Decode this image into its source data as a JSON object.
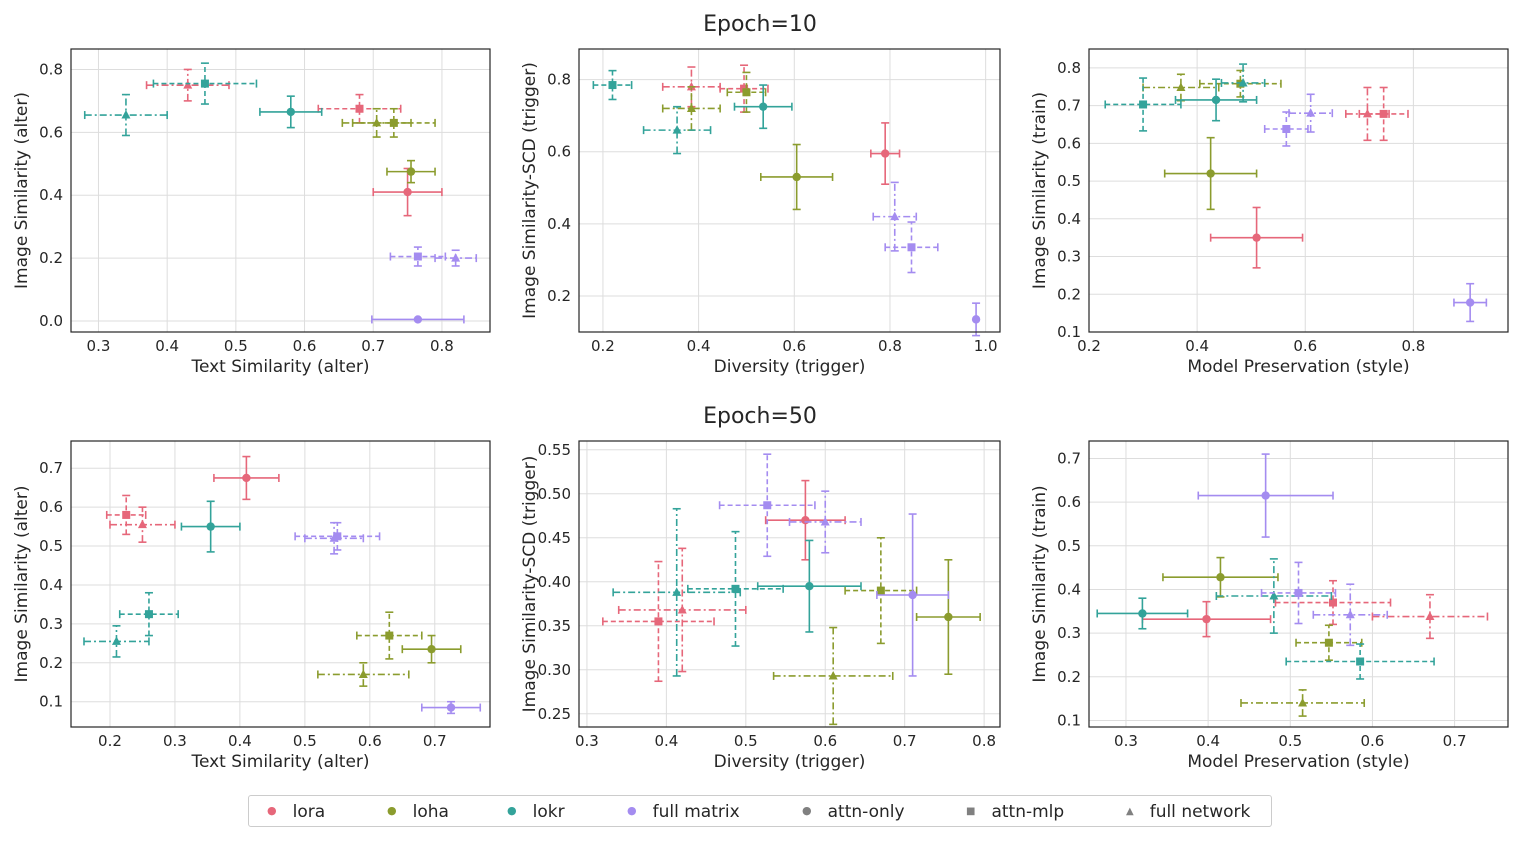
{
  "rows": [
    {
      "title": "Epoch=10"
    },
    {
      "title": "Epoch=50"
    }
  ],
  "colors": {
    "lora": "#e6677a",
    "loha": "#8b9c2e",
    "lokr": "#33a39a",
    "full matrix": "#a48cf0",
    "neutral": "#808080"
  },
  "legend": [
    {
      "label": "lora",
      "color": "#e6677a",
      "shape": "circle"
    },
    {
      "label": "loha",
      "color": "#8b9c2e",
      "shape": "circle"
    },
    {
      "label": "lokr",
      "color": "#33a39a",
      "shape": "circle"
    },
    {
      "label": "full matrix",
      "color": "#a48cf0",
      "shape": "circle"
    },
    {
      "label": "attn-only",
      "color": "#808080",
      "shape": "circle"
    },
    {
      "label": "attn-mlp",
      "color": "#808080",
      "shape": "square"
    },
    {
      "label": "full network",
      "color": "#808080",
      "shape": "triangle"
    }
  ],
  "chart_data": [
    {
      "type": "scatter",
      "row": 0,
      "col": 0,
      "xlabel": "Text Similarity (alter)",
      "ylabel": "Image Similarity (alter)",
      "xlim": [
        0.26,
        0.87
      ],
      "ylim": [
        -0.035,
        0.865
      ],
      "xticks": [
        "0.3",
        "0.4",
        "0.5",
        "0.6",
        "0.7",
        "0.8"
      ],
      "yticks": [
        "0.0",
        "0.2",
        "0.4",
        "0.6",
        "0.8"
      ],
      "grid": true,
      "points": [
        {
          "m": "lora",
          "c": "attn-only",
          "x": 0.75,
          "y": 0.41,
          "xerr": 0.05,
          "yerr": 0.075
        },
        {
          "m": "lora",
          "c": "attn-mlp",
          "x": 0.68,
          "y": 0.675,
          "xerr": 0.06,
          "yerr": 0.045
        },
        {
          "m": "lora",
          "c": "full network",
          "x": 0.43,
          "y": 0.75,
          "xerr": 0.06,
          "yerr": 0.05
        },
        {
          "m": "loha",
          "c": "attn-only",
          "x": 0.755,
          "y": 0.475,
          "xerr": 0.035,
          "yerr": 0.035
        },
        {
          "m": "loha",
          "c": "attn-mlp",
          "x": 0.73,
          "y": 0.63,
          "xerr": 0.06,
          "yerr": 0.045
        },
        {
          "m": "loha",
          "c": "full network",
          "x": 0.705,
          "y": 0.63,
          "xerr": 0.05,
          "yerr": 0.045
        },
        {
          "m": "lokr",
          "c": "attn-only",
          "x": 0.58,
          "y": 0.665,
          "xerr": 0.045,
          "yerr": 0.05
        },
        {
          "m": "lokr",
          "c": "attn-mlp",
          "x": 0.455,
          "y": 0.755,
          "xerr": 0.075,
          "yerr": 0.065
        },
        {
          "m": "lokr",
          "c": "full network",
          "x": 0.34,
          "y": 0.655,
          "xerr": 0.06,
          "yerr": 0.065
        },
        {
          "m": "full matrix",
          "c": "attn-only",
          "x": 0.765,
          "y": 0.005,
          "xerr": 0.067,
          "yerr": 0.0
        },
        {
          "m": "full matrix",
          "c": "attn-mlp",
          "x": 0.765,
          "y": 0.205,
          "xerr": 0.04,
          "yerr": 0.03
        },
        {
          "m": "full matrix",
          "c": "full network",
          "x": 0.82,
          "y": 0.2,
          "xerr": 0.03,
          "yerr": 0.025
        }
      ]
    },
    {
      "type": "scatter",
      "row": 0,
      "col": 1,
      "xlabel": "Diversity (trigger)",
      "ylabel": "Image Similarity-SCD (trigger)",
      "xlim": [
        0.15,
        1.03
      ],
      "ylim": [
        0.1,
        0.885
      ],
      "xticks": [
        "0.2",
        "0.4",
        "0.6",
        "0.8",
        "1.0"
      ],
      "yticks": [
        "0.2",
        "0.4",
        "0.6",
        "0.8"
      ],
      "grid": true,
      "points": [
        {
          "m": "lora",
          "c": "attn-only",
          "x": 0.79,
          "y": 0.595,
          "xerr": 0.03,
          "yerr": 0.085
        },
        {
          "m": "lora",
          "c": "attn-mlp",
          "x": 0.495,
          "y": 0.775,
          "xerr": 0.05,
          "yerr": 0.065
        },
        {
          "m": "lora",
          "c": "full network",
          "x": 0.385,
          "y": 0.78,
          "xerr": 0.06,
          "yerr": 0.055
        },
        {
          "m": "loha",
          "c": "attn-only",
          "x": 0.605,
          "y": 0.53,
          "xerr": 0.075,
          "yerr": 0.09
        },
        {
          "m": "loha",
          "c": "attn-mlp",
          "x": 0.5,
          "y": 0.765,
          "xerr": 0.04,
          "yerr": 0.055
        },
        {
          "m": "loha",
          "c": "full network",
          "x": 0.385,
          "y": 0.72,
          "xerr": 0.06,
          "yerr": 0.06
        },
        {
          "m": "lokr",
          "c": "attn-only",
          "x": 0.535,
          "y": 0.725,
          "xerr": 0.06,
          "yerr": 0.06
        },
        {
          "m": "lokr",
          "c": "attn-mlp",
          "x": 0.22,
          "y": 0.785,
          "xerr": 0.04,
          "yerr": 0.04
        },
        {
          "m": "lokr",
          "c": "full network",
          "x": 0.355,
          "y": 0.66,
          "xerr": 0.07,
          "yerr": 0.065
        },
        {
          "m": "full matrix",
          "c": "attn-only",
          "x": 0.98,
          "y": 0.135,
          "xerr": 0.0,
          "yerr": 0.045
        },
        {
          "m": "full matrix",
          "c": "attn-mlp",
          "x": 0.845,
          "y": 0.335,
          "xerr": 0.055,
          "yerr": 0.07
        },
        {
          "m": "full matrix",
          "c": "full network",
          "x": 0.81,
          "y": 0.42,
          "xerr": 0.045,
          "yerr": 0.095
        }
      ]
    },
    {
      "type": "scatter",
      "row": 0,
      "col": 2,
      "xlabel": "Model Preservation (style)",
      "ylabel": "Image Similarity (train)",
      "xlim": [
        0.2,
        0.975
      ],
      "ylim": [
        0.1,
        0.85
      ],
      "xticks": [
        "0.2",
        "0.4",
        "0.6",
        "0.8"
      ],
      "yticks": [
        "0.1",
        "0.2",
        "0.3",
        "0.4",
        "0.5",
        "0.6",
        "0.7",
        "0.8"
      ],
      "grid": true,
      "points": [
        {
          "m": "lora",
          "c": "attn-only",
          "x": 0.51,
          "y": 0.35,
          "xerr": 0.085,
          "yerr": 0.08
        },
        {
          "m": "lora",
          "c": "attn-mlp",
          "x": 0.745,
          "y": 0.678,
          "xerr": 0.045,
          "yerr": 0.07
        },
        {
          "m": "lora",
          "c": "full network",
          "x": 0.715,
          "y": 0.678,
          "xerr": 0.04,
          "yerr": 0.07
        },
        {
          "m": "loha",
          "c": "attn-only",
          "x": 0.425,
          "y": 0.52,
          "xerr": 0.085,
          "yerr": 0.095
        },
        {
          "m": "loha",
          "c": "attn-mlp",
          "x": 0.48,
          "y": 0.758,
          "xerr": 0.075,
          "yerr": 0.035
        },
        {
          "m": "loha",
          "c": "full network",
          "x": 0.37,
          "y": 0.748,
          "xerr": 0.07,
          "yerr": 0.035
        },
        {
          "m": "lokr",
          "c": "attn-only",
          "x": 0.435,
          "y": 0.715,
          "xerr": 0.075,
          "yerr": 0.055
        },
        {
          "m": "lokr",
          "c": "attn-mlp",
          "x": 0.3,
          "y": 0.703,
          "xerr": 0.07,
          "yerr": 0.07
        },
        {
          "m": "lokr",
          "c": "full network",
          "x": 0.485,
          "y": 0.76,
          "xerr": 0.04,
          "yerr": 0.05
        },
        {
          "m": "full matrix",
          "c": "attn-only",
          "x": 0.905,
          "y": 0.178,
          "xerr": 0.03,
          "yerr": 0.05
        },
        {
          "m": "full matrix",
          "c": "attn-mlp",
          "x": 0.565,
          "y": 0.638,
          "xerr": 0.04,
          "yerr": 0.045
        },
        {
          "m": "full matrix",
          "c": "full network",
          "x": 0.61,
          "y": 0.68,
          "xerr": 0.04,
          "yerr": 0.05
        }
      ]
    },
    {
      "type": "scatter",
      "row": 1,
      "col": 0,
      "xlabel": "Text Similarity (alter)",
      "ylabel": "Image Similarity (alter)",
      "xlim": [
        0.14,
        0.785
      ],
      "ylim": [
        0.035,
        0.77
      ],
      "xticks": [
        "0.2",
        "0.3",
        "0.4",
        "0.5",
        "0.6",
        "0.7"
      ],
      "yticks": [
        "0.1",
        "0.2",
        "0.3",
        "0.4",
        "0.5",
        "0.6",
        "0.7"
      ],
      "grid": true,
      "points": [
        {
          "m": "lora",
          "c": "attn-only",
          "x": 0.41,
          "y": 0.675,
          "xerr": 0.05,
          "yerr": 0.055
        },
        {
          "m": "lora",
          "c": "attn-mlp",
          "x": 0.225,
          "y": 0.58,
          "xerr": 0.03,
          "yerr": 0.05
        },
        {
          "m": "lora",
          "c": "full network",
          "x": 0.25,
          "y": 0.555,
          "xerr": 0.05,
          "yerr": 0.045
        },
        {
          "m": "loha",
          "c": "attn-only",
          "x": 0.695,
          "y": 0.235,
          "xerr": 0.045,
          "yerr": 0.035
        },
        {
          "m": "loha",
          "c": "attn-mlp",
          "x": 0.63,
          "y": 0.27,
          "xerr": 0.05,
          "yerr": 0.06
        },
        {
          "m": "loha",
          "c": "full network",
          "x": 0.59,
          "y": 0.17,
          "xerr": 0.07,
          "yerr": 0.03
        },
        {
          "m": "lokr",
          "c": "attn-only",
          "x": 0.355,
          "y": 0.55,
          "xerr": 0.045,
          "yerr": 0.065
        },
        {
          "m": "lokr",
          "c": "attn-mlp",
          "x": 0.26,
          "y": 0.325,
          "xerr": 0.045,
          "yerr": 0.055
        },
        {
          "m": "lokr",
          "c": "full network",
          "x": 0.21,
          "y": 0.255,
          "xerr": 0.05,
          "yerr": 0.04
        },
        {
          "m": "full matrix",
          "c": "attn-only",
          "x": 0.725,
          "y": 0.085,
          "xerr": 0.045,
          "yerr": 0.015
        },
        {
          "m": "full matrix",
          "c": "attn-mlp",
          "x": 0.55,
          "y": 0.525,
          "xerr": 0.065,
          "yerr": 0.035
        },
        {
          "m": "full matrix",
          "c": "full network",
          "x": 0.545,
          "y": 0.52,
          "xerr": 0.045,
          "yerr": 0.04
        }
      ]
    },
    {
      "type": "scatter",
      "row": 1,
      "col": 1,
      "xlabel": "Diversity (trigger)",
      "ylabel": "Image Similarity-SCD (trigger)",
      "xlim": [
        0.29,
        0.82
      ],
      "ylim": [
        0.235,
        0.56
      ],
      "xticks": [
        "0.3",
        "0.4",
        "0.5",
        "0.6",
        "0.7",
        "0.8"
      ],
      "yticks": [
        "0.25",
        "0.30",
        "0.35",
        "0.40",
        "0.45",
        "0.50",
        "0.55"
      ],
      "grid": true,
      "points": [
        {
          "m": "lora",
          "c": "attn-only",
          "x": 0.575,
          "y": 0.47,
          "xerr": 0.05,
          "yerr": 0.045
        },
        {
          "m": "lora",
          "c": "attn-mlp",
          "x": 0.39,
          "y": 0.355,
          "xerr": 0.07,
          "yerr": 0.068
        },
        {
          "m": "lora",
          "c": "full network",
          "x": 0.42,
          "y": 0.368,
          "xerr": 0.08,
          "yerr": 0.07
        },
        {
          "m": "loha",
          "c": "attn-only",
          "x": 0.755,
          "y": 0.36,
          "xerr": 0.04,
          "yerr": 0.065
        },
        {
          "m": "loha",
          "c": "attn-mlp",
          "x": 0.67,
          "y": 0.39,
          "xerr": 0.045,
          "yerr": 0.06
        },
        {
          "m": "loha",
          "c": "full network",
          "x": 0.61,
          "y": 0.293,
          "xerr": 0.075,
          "yerr": 0.055
        },
        {
          "m": "lokr",
          "c": "attn-only",
          "x": 0.58,
          "y": 0.395,
          "xerr": 0.065,
          "yerr": 0.052
        },
        {
          "m": "lokr",
          "c": "attn-mlp",
          "x": 0.487,
          "y": 0.392,
          "xerr": 0.06,
          "yerr": 0.065
        },
        {
          "m": "lokr",
          "c": "full network",
          "x": 0.413,
          "y": 0.388,
          "xerr": 0.08,
          "yerr": 0.095
        },
        {
          "m": "full matrix",
          "c": "attn-only",
          "x": 0.71,
          "y": 0.385,
          "xerr": 0.045,
          "yerr": 0.092
        },
        {
          "m": "full matrix",
          "c": "attn-mlp",
          "x": 0.527,
          "y": 0.487,
          "xerr": 0.06,
          "yerr": 0.058
        },
        {
          "m": "full matrix",
          "c": "full network",
          "x": 0.6,
          "y": 0.468,
          "xerr": 0.045,
          "yerr": 0.035
        }
      ]
    },
    {
      "type": "scatter",
      "row": 1,
      "col": 2,
      "xlabel": "Model Preservation (style)",
      "ylabel": "Image Similarity (train)",
      "xlim": [
        0.255,
        0.765
      ],
      "ylim": [
        0.085,
        0.74
      ],
      "xticks": [
        "0.3",
        "0.4",
        "0.5",
        "0.6",
        "0.7"
      ],
      "yticks": [
        "0.1",
        "0.2",
        "0.3",
        "0.4",
        "0.5",
        "0.6",
        "0.7"
      ],
      "grid": true,
      "points": [
        {
          "m": "lora",
          "c": "attn-only",
          "x": 0.398,
          "y": 0.332,
          "xerr": 0.078,
          "yerr": 0.04
        },
        {
          "m": "lora",
          "c": "attn-mlp",
          "x": 0.552,
          "y": 0.37,
          "xerr": 0.07,
          "yerr": 0.05
        },
        {
          "m": "lora",
          "c": "full network",
          "x": 0.67,
          "y": 0.338,
          "xerr": 0.07,
          "yerr": 0.05
        },
        {
          "m": "loha",
          "c": "attn-only",
          "x": 0.415,
          "y": 0.428,
          "xerr": 0.07,
          "yerr": 0.045
        },
        {
          "m": "loha",
          "c": "attn-mlp",
          "x": 0.547,
          "y": 0.278,
          "xerr": 0.04,
          "yerr": 0.04
        },
        {
          "m": "loha",
          "c": "full network",
          "x": 0.515,
          "y": 0.14,
          "xerr": 0.075,
          "yerr": 0.03
        },
        {
          "m": "lokr",
          "c": "attn-only",
          "x": 0.32,
          "y": 0.345,
          "xerr": 0.055,
          "yerr": 0.035
        },
        {
          "m": "lokr",
          "c": "attn-mlp",
          "x": 0.585,
          "y": 0.235,
          "xerr": 0.09,
          "yerr": 0.04
        },
        {
          "m": "lokr",
          "c": "full network",
          "x": 0.48,
          "y": 0.385,
          "xerr": 0.07,
          "yerr": 0.085
        },
        {
          "m": "full matrix",
          "c": "attn-only",
          "x": 0.47,
          "y": 0.615,
          "xerr": 0.082,
          "yerr": 0.095
        },
        {
          "m": "full matrix",
          "c": "attn-mlp",
          "x": 0.51,
          "y": 0.392,
          "xerr": 0.045,
          "yerr": 0.07
        },
        {
          "m": "full matrix",
          "c": "full network",
          "x": 0.573,
          "y": 0.342,
          "xerr": 0.045,
          "yerr": 0.07
        }
      ]
    }
  ]
}
